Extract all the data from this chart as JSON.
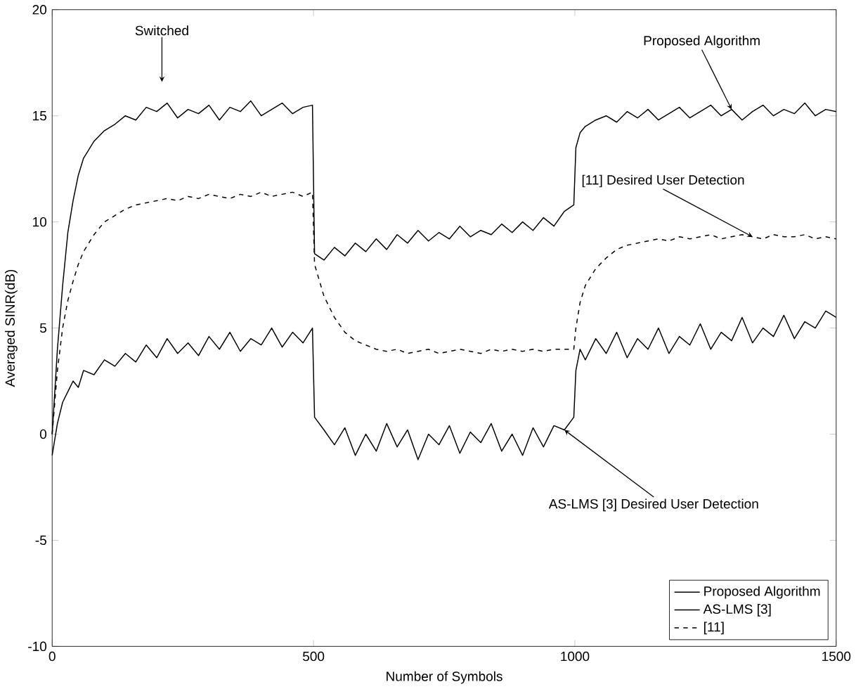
{
  "chart_data": {
    "type": "line",
    "xlabel": "Number of Symbols",
    "ylabel": "Averaged SINR(dB)",
    "xlim": [
      0,
      1500
    ],
    "ylim": [
      -10,
      20
    ],
    "xticks": [
      0,
      500,
      1000,
      1500
    ],
    "yticks": [
      -10,
      -5,
      0,
      5,
      10,
      15,
      20
    ],
    "legend": "bottom right",
    "grid": false,
    "x": [
      0,
      10,
      20,
      30,
      40,
      50,
      60,
      80,
      100,
      120,
      140,
      160,
      180,
      200,
      220,
      240,
      260,
      280,
      300,
      320,
      340,
      360,
      380,
      400,
      420,
      440,
      460,
      480,
      498,
      502,
      520,
      540,
      560,
      580,
      600,
      620,
      640,
      660,
      680,
      700,
      720,
      740,
      760,
      780,
      800,
      820,
      840,
      860,
      880,
      900,
      920,
      940,
      960,
      980,
      998,
      1002,
      1010,
      1020,
      1040,
      1060,
      1080,
      1100,
      1120,
      1140,
      1160,
      1180,
      1200,
      1220,
      1240,
      1260,
      1280,
      1300,
      1320,
      1340,
      1360,
      1380,
      1400,
      1420,
      1440,
      1460,
      1480,
      1500
    ],
    "series": [
      {
        "name": "Proposed Algorithm",
        "color": "#000000",
        "line_style": "solid",
        "values": [
          0,
          4,
          7,
          9.5,
          11,
          12.2,
          13,
          13.8,
          14.3,
          14.6,
          15,
          14.8,
          15.4,
          15.2,
          15.6,
          14.9,
          15.3,
          15.1,
          15.5,
          14.8,
          15.4,
          15.2,
          15.7,
          15,
          15.3,
          15.6,
          15.1,
          15.4,
          15.5,
          8.5,
          8.2,
          8.8,
          8.4,
          9,
          8.6,
          9.2,
          8.7,
          9.4,
          9,
          9.6,
          9.1,
          9.5,
          9.2,
          9.8,
          9.3,
          9.6,
          9.4,
          9.9,
          9.5,
          10,
          9.6,
          10.2,
          9.8,
          10.5,
          10.8,
          13.5,
          14.2,
          14.5,
          14.8,
          15,
          14.7,
          15.2,
          14.9,
          15.3,
          14.8,
          15.1,
          15.4,
          14.9,
          15.2,
          15.5,
          15,
          15.3,
          14.8,
          15.2,
          15.5,
          15,
          15.3,
          15.1,
          15.6,
          15,
          15.3,
          15.2
        ]
      },
      {
        "name": "AS-LMS [3]",
        "color": "#000000",
        "line_style": "solid",
        "values": [
          -1,
          0.5,
          1.5,
          2,
          2.5,
          2.2,
          3,
          2.8,
          3.5,
          3.2,
          3.8,
          3.4,
          4.2,
          3.6,
          4.5,
          3.8,
          4.3,
          3.7,
          4.6,
          4,
          4.8,
          3.9,
          4.5,
          4.2,
          5,
          4.1,
          4.8,
          4.3,
          5,
          0.8,
          0.2,
          -0.5,
          0.3,
          -1,
          0,
          -0.8,
          0.5,
          -0.6,
          0.2,
          -1.2,
          0,
          -0.5,
          0.4,
          -0.9,
          0.1,
          -0.4,
          0.5,
          -0.8,
          0,
          -1,
          0.3,
          -0.6,
          0.4,
          0.2,
          0.8,
          3,
          4,
          3.5,
          4.5,
          3.8,
          4.8,
          3.6,
          4.5,
          4,
          5,
          3.8,
          4.6,
          4.2,
          5.2,
          4,
          4.8,
          4.4,
          5.5,
          4.3,
          5,
          4.6,
          5.6,
          4.5,
          5.3,
          5,
          5.8,
          5.5
        ]
      },
      {
        "name": "[11]",
        "color": "#000000",
        "line_style": "dashed",
        "values": [
          0,
          3,
          5,
          6.3,
          7.2,
          8,
          8.6,
          9.4,
          10,
          10.3,
          10.6,
          10.8,
          10.9,
          11,
          11.1,
          11,
          11.2,
          11.1,
          11.3,
          11.2,
          11.1,
          11.3,
          11.2,
          11.4,
          11.2,
          11.3,
          11.4,
          11.2,
          11.4,
          8,
          6.5,
          5.5,
          4.8,
          4.4,
          4.2,
          4,
          3.9,
          4,
          3.8,
          3.9,
          4,
          3.8,
          3.9,
          4,
          3.9,
          3.8,
          4,
          3.9,
          4,
          3.9,
          4,
          3.9,
          4,
          4,
          4,
          5,
          6.2,
          7,
          7.8,
          8.3,
          8.7,
          8.9,
          9,
          9.1,
          9.2,
          9.1,
          9.3,
          9.2,
          9.3,
          9.4,
          9.2,
          9.3,
          9.4,
          9.3,
          9.2,
          9.4,
          9.3,
          9.3,
          9.4,
          9.2,
          9.3,
          9.2
        ]
      }
    ],
    "annotations": [
      {
        "text": "Switched",
        "x": 210,
        "y": 16.6
      },
      {
        "text": "Proposed Algorithm",
        "x": 1300,
        "y": 15.3
      },
      {
        "text": "[11] Desired User Detection",
        "x": 1340,
        "y": 9.3
      },
      {
        "text": "AS-LMS [3] Desired User Detection",
        "x": 980,
        "y": 0.2
      }
    ]
  }
}
